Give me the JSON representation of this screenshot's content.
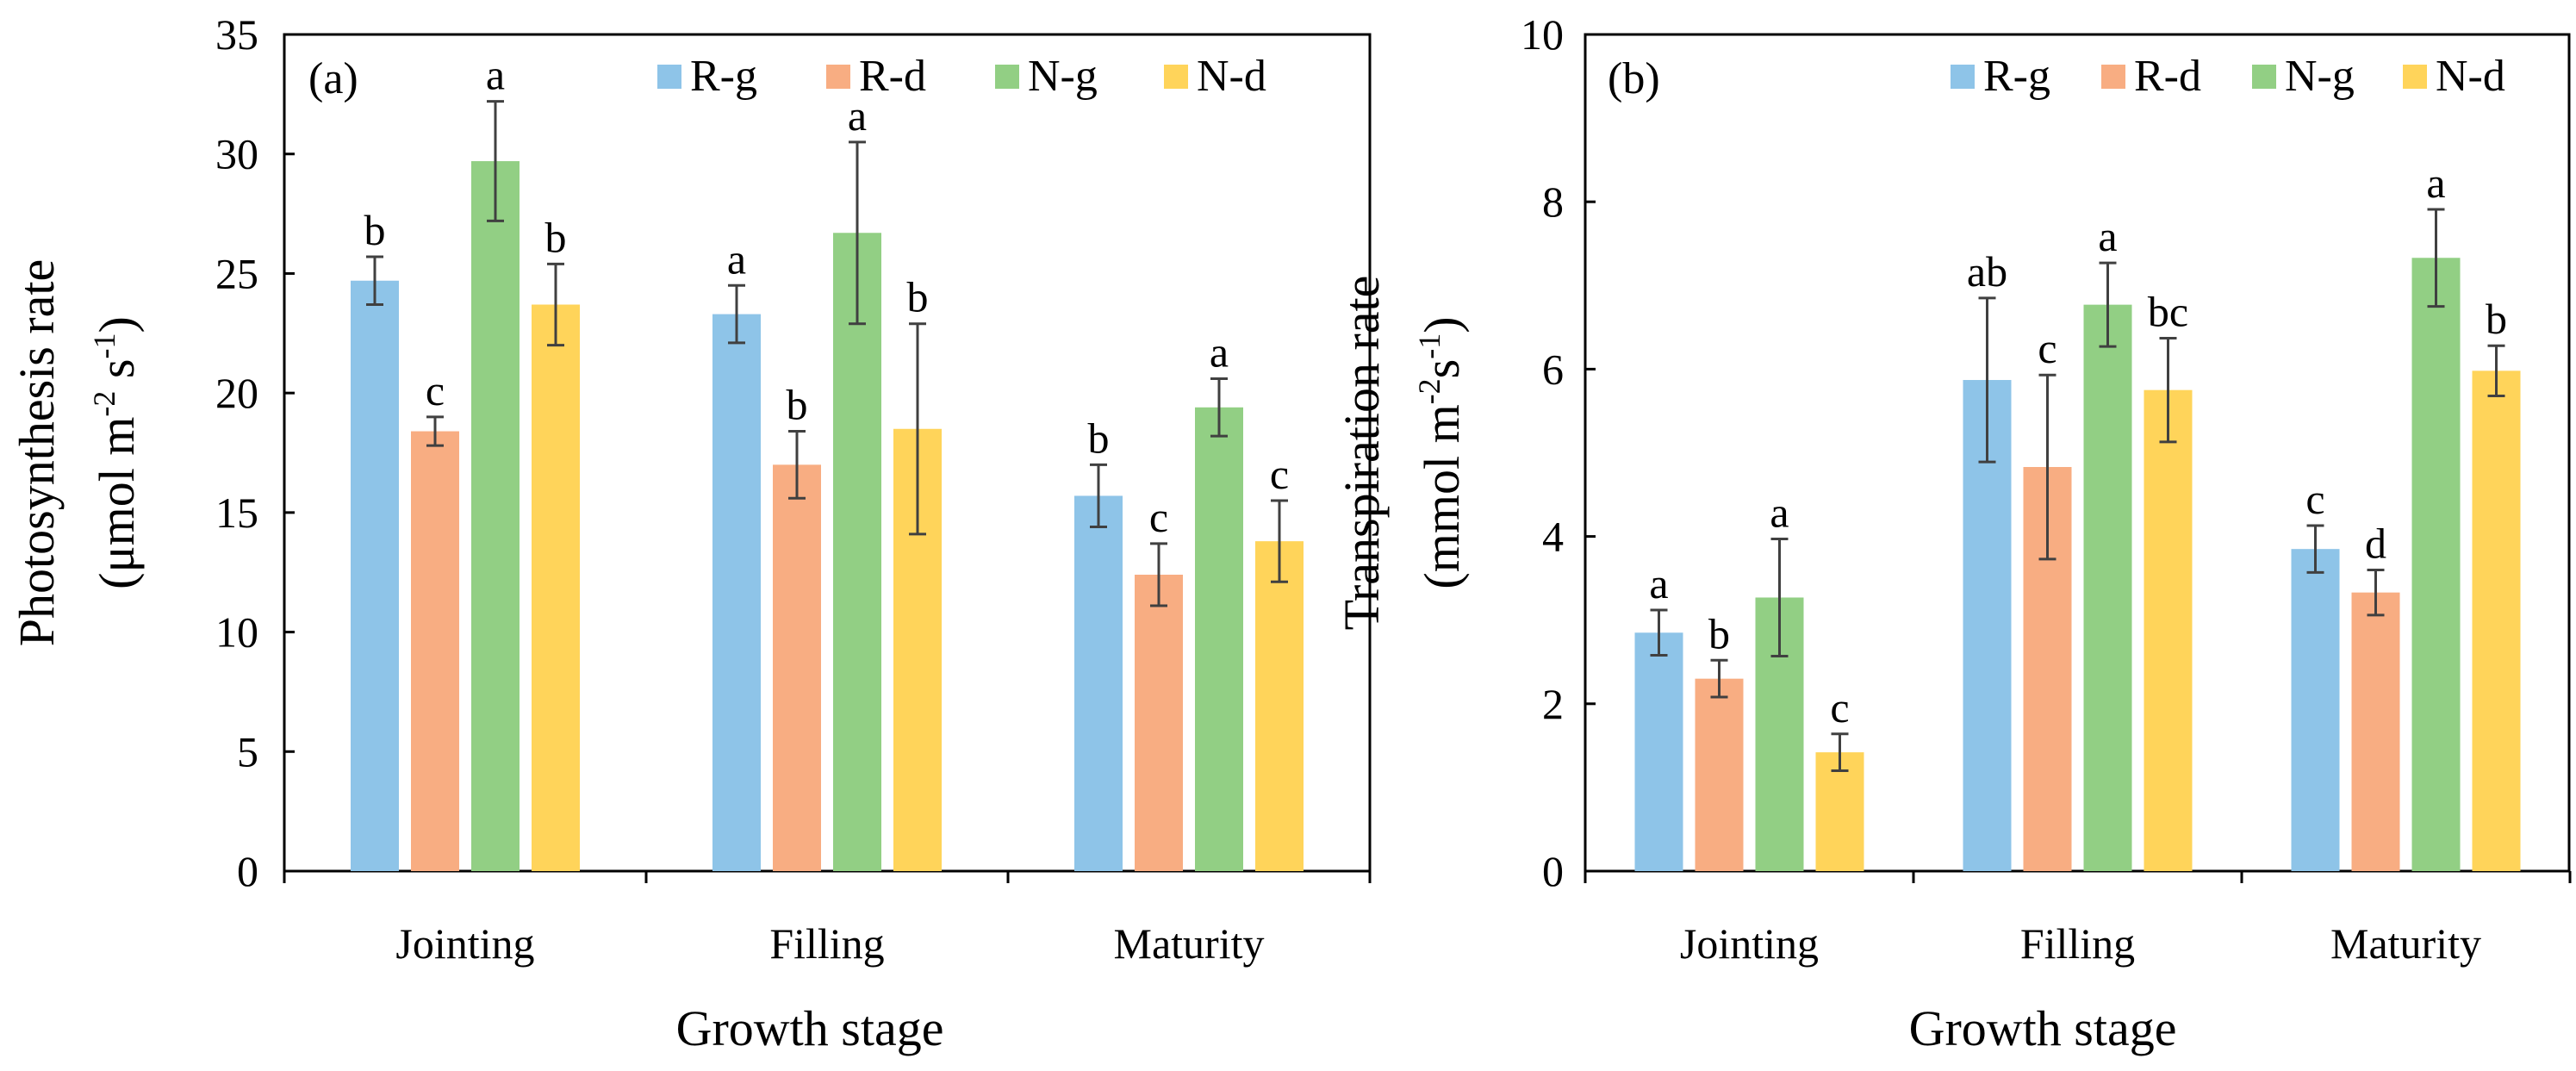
{
  "chart_data": [
    {
      "type": "bar",
      "panel": "(a)",
      "title": "",
      "xlabel": "Growth stage",
      "ylabel_line1": "Photosynthesis rate",
      "ylabel_line2_parts": [
        "(μmol m",
        "-2",
        " s",
        "-1",
        ")"
      ],
      "ylim": [
        0,
        35
      ],
      "yticks": [
        0,
        5,
        10,
        15,
        20,
        25,
        30,
        35
      ],
      "categories": [
        "Jointing",
        "Filling",
        "Maturity"
      ],
      "legend_position": "top-right",
      "series": [
        {
          "name": "R-g",
          "color": "#8EC4E8",
          "values": [
            24.7,
            23.3,
            15.7
          ],
          "errors": [
            1.0,
            1.2,
            1.3
          ],
          "letters": [
            "b",
            "a",
            "b"
          ]
        },
        {
          "name": "R-d",
          "color": "#F8AD82",
          "values": [
            18.4,
            17.0,
            12.4
          ],
          "errors": [
            0.6,
            1.4,
            1.3
          ],
          "letters": [
            "c",
            "b",
            "c"
          ]
        },
        {
          "name": "N-g",
          "color": "#92CF84",
          "values": [
            29.7,
            26.7,
            19.4
          ],
          "errors": [
            2.5,
            3.8,
            1.2
          ],
          "letters": [
            "a",
            "a",
            "a"
          ]
        },
        {
          "name": "N-d",
          "color": "#FFD45A",
          "values": [
            23.7,
            18.5,
            13.8
          ],
          "errors": [
            1.7,
            4.4,
            1.7
          ],
          "letters": [
            "b",
            "b",
            "c"
          ]
        }
      ]
    },
    {
      "type": "bar",
      "panel": "(b)",
      "title": "",
      "xlabel": "Growth stage",
      "ylabel_line1": "Transpiration rate",
      "ylabel_line2_parts": [
        "(mmol m",
        "-2",
        "s",
        "-1",
        ")"
      ],
      "ylim": [
        0,
        10
      ],
      "yticks": [
        0,
        2,
        4,
        6,
        8,
        10
      ],
      "categories": [
        "Jointing",
        "Filling",
        "Maturity"
      ],
      "legend_position": "top-right",
      "series": [
        {
          "name": "R-g",
          "color": "#8EC4E8",
          "values": [
            2.85,
            5.87,
            3.85
          ],
          "errors": [
            0.27,
            0.98,
            0.28
          ],
          "letters": [
            "a",
            "ab",
            "c"
          ]
        },
        {
          "name": "R-d",
          "color": "#F8AD82",
          "values": [
            2.3,
            4.83,
            3.33
          ],
          "errors": [
            0.22,
            1.1,
            0.27
          ],
          "letters": [
            "b",
            "c",
            "d"
          ]
        },
        {
          "name": "N-g",
          "color": "#92CF84",
          "values": [
            3.27,
            6.77,
            7.33
          ],
          "errors": [
            0.7,
            0.5,
            0.58
          ],
          "letters": [
            "a",
            "a",
            "a"
          ]
        },
        {
          "name": "N-d",
          "color": "#FFD45A",
          "values": [
            1.42,
            5.75,
            5.98
          ],
          "errors": [
            0.22,
            0.62,
            0.3
          ],
          "letters": [
            "c",
            "bc",
            "b"
          ]
        }
      ]
    }
  ]
}
